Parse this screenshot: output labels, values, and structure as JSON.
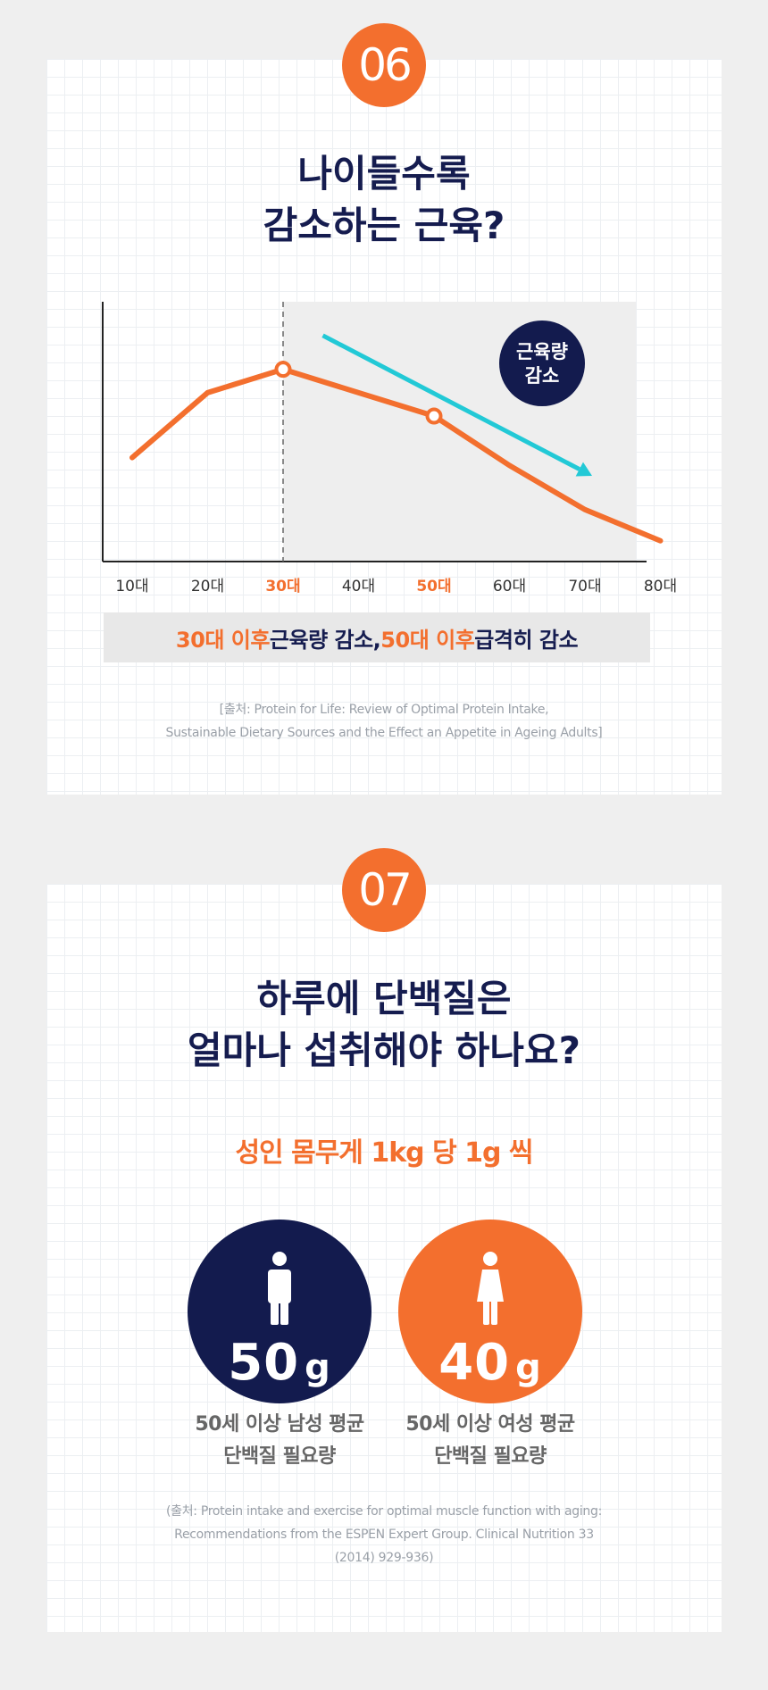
{
  "section1": {
    "badge": "06",
    "title_line1": "나이들수록",
    "title_line2": "감소하는 근육?",
    "callout_line1": "근육량",
    "callout_line2": "감소",
    "summary": {
      "part1": "30대 이후",
      "part2": " 근육량 감소, ",
      "part3": "50대 이후",
      "part4": " 급격히 감소"
    },
    "source_line1": "[출처: Protein for Life: Review of Optimal Protein Intake,",
    "source_line2": "Sustainable Dietary Sources and the Effect an Appetite in Ageing Adults]"
  },
  "chart_data": {
    "type": "line",
    "categories": [
      "10대",
      "20대",
      "30대",
      "40대",
      "50대",
      "60대",
      "70대",
      "80대"
    ],
    "highlighted_categories": [
      "30대",
      "50대"
    ],
    "series": [
      {
        "values": [
          40,
          65,
          74,
          65,
          56,
          37,
          20,
          8
        ]
      }
    ],
    "markers": [
      {
        "category": "30대",
        "value": 74
      },
      {
        "category": "50대",
        "value": 56
      }
    ],
    "shaded_from": "30대",
    "trend_arrow": {
      "from": {
        "category": "40대",
        "value": 87
      },
      "to": {
        "category": "70대",
        "value": 33
      }
    },
    "ylim": [
      0,
      100
    ],
    "colors": {
      "line": "#f36f2e",
      "arrow": "#22c9d6",
      "axis": "#222222",
      "shade": "#eeeeee",
      "callout": "#131b4e"
    },
    "grid": false
  },
  "section2": {
    "badge": "07",
    "title_line1": "하루에 단백질은",
    "title_line2": "얼마나 섭취해야 하나요?",
    "subtitle": "성인 몸무게 1kg 당 1g 씩",
    "male": {
      "amount": "50",
      "unit": "g",
      "label_line1": "50세 이상 남성 평균",
      "label_line2": "단백질 필요량",
      "icon": "male-person-icon",
      "color": "#131b4e"
    },
    "female": {
      "amount": "40",
      "unit": "g",
      "label_line1": "50세 이상 여성 평균",
      "label_line2": "단백질 필요량",
      "icon": "female-person-icon",
      "color": "#f36f2e"
    },
    "source_line1": "(출처: Protein intake and exercise for optimal muscle function with aging:",
    "source_line2": "Recommendations from the ESPEN Expert Group. Clinical Nutrition 33",
    "source_line3": "(2014) 929-936)"
  }
}
